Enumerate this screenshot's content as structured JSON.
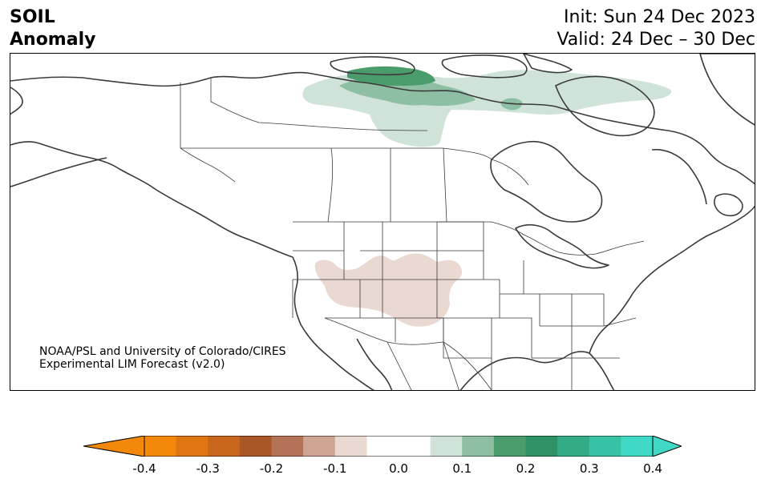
{
  "title": {
    "left_line1": "SOIL",
    "left_line2": "Anomaly",
    "right_line1": "Init: Sun 24 Dec 2023",
    "right_line2": "Valid: 24 Dec – 30 Dec"
  },
  "credit": {
    "line1": "NOAA/PSL and University of Colorado/CIRES",
    "line2": "Experimental LIM Forecast (v2.0)"
  },
  "colorbar": {
    "ticks": [
      "-0.4",
      "-0.3",
      "-0.2",
      "-0.1",
      "0.0",
      "0.1",
      "0.2",
      "0.3",
      "0.4"
    ],
    "colors": [
      "#f3880b",
      "#e07514",
      "#c9661e",
      "#aa5726",
      "#b47357",
      "#cea592",
      "#ead9d1",
      "#ffffff",
      "#ffffff",
      "#cfe3d9",
      "#8ebfa4",
      "#4a9c6c",
      "#2e9265",
      "#33ab86",
      "#38c2a5",
      "#3fd9c5"
    ],
    "under_color": "#f3880b",
    "over_color": "#3fd9c5"
  },
  "anomaly_colors": {
    "light_green": "#cfe3d9",
    "mid_green": "#8ebfa4",
    "dark_green": "#4a9c6c",
    "light_brown": "#ead9d1"
  }
}
